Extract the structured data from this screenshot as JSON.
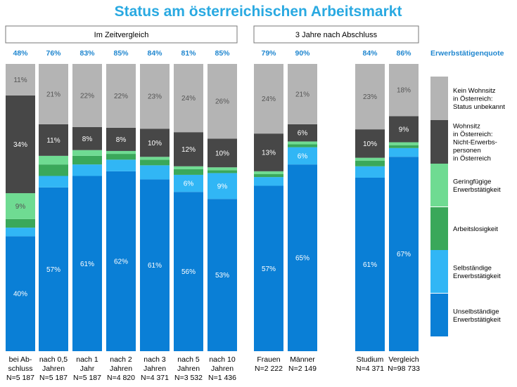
{
  "chart_data": {
    "type": "bar",
    "stacked": true,
    "normalized": true,
    "title": "Status am österreichischen Arbeitsmarkt",
    "groups": [
      {
        "label": "Im Zeitvergleich",
        "bars": 7
      },
      {
        "label": "3 Jahre nach Abschluss",
        "bars": 2
      },
      {
        "label": "",
        "bars": 2
      }
    ],
    "quote_title": "Erwerbstätigenquote",
    "categories": [
      [
        "bei Ab-",
        "schluss",
        "N=5 187"
      ],
      [
        "nach 0,5",
        "Jahren",
        "N=5 187"
      ],
      [
        "nach 1",
        "Jahr",
        "N=5 187"
      ],
      [
        "nach 2",
        "Jahren",
        "N=4 820"
      ],
      [
        "nach 3",
        "Jahren",
        "N=4 371"
      ],
      [
        "nach 5",
        "Jahren",
        "N=3 532"
      ],
      [
        "nach 10",
        "Jahren",
        "N=1 436"
      ],
      [
        "Frauen",
        "N=2 222"
      ],
      [
        "Männer",
        "N=2 149"
      ],
      [
        "Studium",
        "N=4 371"
      ],
      [
        "Vergleich",
        "N=98 733"
      ]
    ],
    "quotes": [
      "48%",
      "76%",
      "83%",
      "85%",
      "84%",
      "81%",
      "85%",
      "79%",
      "90%",
      "84%",
      "86%"
    ],
    "series": [
      {
        "name": "Unselbständige Erwerbstätigkeit",
        "legend": [
          "Unselbständige",
          "Erwerbstätigkeit"
        ],
        "color": "#0a7fd6",
        "values": [
          40,
          57,
          61,
          62,
          61,
          56,
          53,
          57,
          65,
          61,
          67
        ],
        "labels": [
          "40%",
          "57%",
          "61%",
          "62%",
          "61%",
          "56%",
          "53%",
          "57%",
          "65%",
          "61%",
          "67%"
        ]
      },
      {
        "name": "Selbständige Erwerbstätigkeit",
        "legend": [
          "Selbständige",
          "Erwerbstätigkeit"
        ],
        "color": "#31b6f5",
        "values": [
          3,
          4,
          4,
          4,
          5,
          6,
          9,
          3,
          6,
          4,
          3
        ],
        "labels": [
          "",
          "",
          "",
          "",
          "",
          "6%",
          "9%",
          "",
          "6%",
          "",
          ""
        ]
      },
      {
        "name": "Arbeitslosigkeit",
        "legend": [
          "Arbeitslosigkeit"
        ],
        "color": "#3aa85a",
        "values": [
          3,
          4,
          3,
          2,
          2,
          2,
          1,
          1,
          1,
          2,
          1
        ],
        "labels": [
          "",
          "",
          "",
          "",
          "",
          "",
          "",
          "",
          "",
          "",
          ""
        ]
      },
      {
        "name": "Geringfügige Erwerbstätigkeit",
        "legend": [
          "Geringfügige",
          "Erwerbstätigkeit"
        ],
        "color": "#6fdb92",
        "values": [
          9,
          3,
          2,
          1,
          1,
          1,
          1,
          1,
          1,
          1,
          1
        ],
        "labels": [
          "9%",
          "",
          "",
          "",
          "",
          "",
          "",
          "",
          "",
          "",
          ""
        ]
      },
      {
        "name": "Wohnsitz in Österreich: Nicht-Erwerbspersonen in Österreich",
        "legend": [
          "Wohnsitz",
          "in Österreich:",
          "Nicht-Erwerbs-",
          "personen",
          "in Österreich"
        ],
        "color": "#474747",
        "values": [
          34,
          11,
          8,
          8,
          10,
          12,
          10,
          13,
          6,
          10,
          9
        ],
        "labels": [
          "34%",
          "11%",
          "8%",
          "8%",
          "10%",
          "12%",
          "10%",
          "13%",
          "6%",
          "10%",
          "9%"
        ]
      },
      {
        "name": "Kein Wohnsitz in Österreich: Status unbekannt",
        "legend": [
          "Kein Wohnsitz",
          "in Österreich:",
          "Status unbekannt"
        ],
        "color": "#b4b4b4",
        "values": [
          11,
          21,
          22,
          22,
          23,
          24,
          26,
          24,
          21,
          23,
          18
        ],
        "labels": [
          "11%",
          "21%",
          "22%",
          "22%",
          "23%",
          "24%",
          "26%",
          "24%",
          "21%",
          "23%",
          "18%"
        ]
      }
    ],
    "ylim": [
      0,
      100
    ],
    "legend_position": "right"
  }
}
